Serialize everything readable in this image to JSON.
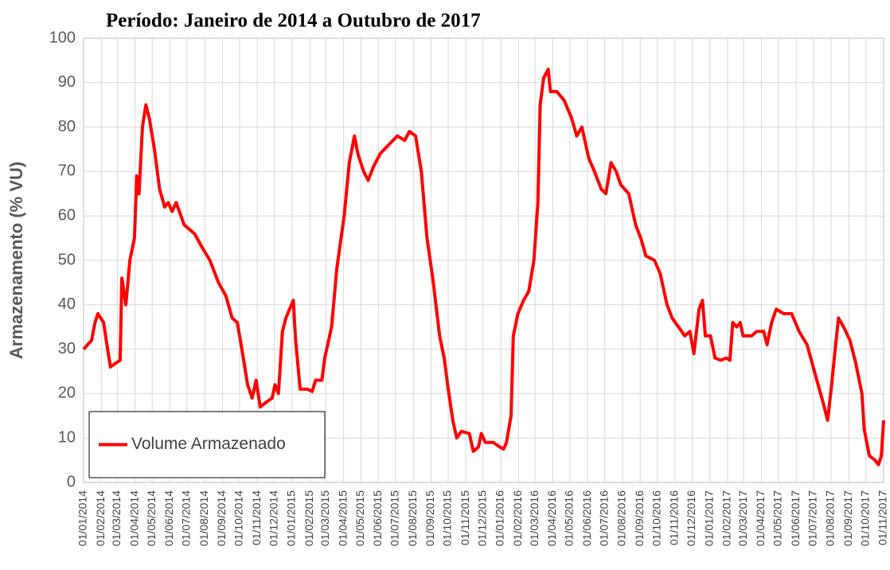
{
  "chart_data": {
    "type": "line",
    "title": "Período: Janeiro de 2014 a Outubro de 2017",
    "y_label": "Armazenamento (% VU)",
    "ylim": [
      0,
      100
    ],
    "yticks": [
      0,
      10,
      20,
      30,
      40,
      50,
      60,
      70,
      80,
      90,
      100
    ],
    "xlim": [
      "2014-01-01",
      "2017-11-01"
    ],
    "xticks": [
      {
        "value": "2014-01-01",
        "label": "01/01/2014"
      },
      {
        "value": "2014-02-01",
        "label": "01/02/2014"
      },
      {
        "value": "2014-03-01",
        "label": "01/03/2014"
      },
      {
        "value": "2014-04-01",
        "label": "01/04/2014"
      },
      {
        "value": "2014-05-01",
        "label": "01/05/2014"
      },
      {
        "value": "2014-06-01",
        "label": "01/06/2014"
      },
      {
        "value": "2014-07-01",
        "label": "01/07/2014"
      },
      {
        "value": "2014-08-01",
        "label": "01/08/2014"
      },
      {
        "value": "2014-09-01",
        "label": "01/09/2014"
      },
      {
        "value": "2014-10-01",
        "label": "01/10/2014"
      },
      {
        "value": "2014-11-01",
        "label": "01/11/2014"
      },
      {
        "value": "2014-12-01",
        "label": "01/12/2014"
      },
      {
        "value": "2015-01-01",
        "label": "01/01/2015"
      },
      {
        "value": "2015-02-01",
        "label": "01/02/2015"
      },
      {
        "value": "2015-03-01",
        "label": "01/03/2015"
      },
      {
        "value": "2015-04-01",
        "label": "01/04/2015"
      },
      {
        "value": "2015-05-01",
        "label": "01/05/2015"
      },
      {
        "value": "2015-06-01",
        "label": "01/06/2015"
      },
      {
        "value": "2015-07-01",
        "label": "01/07/2015"
      },
      {
        "value": "2015-08-01",
        "label": "01/08/2015"
      },
      {
        "value": "2015-09-01",
        "label": "01/09/2015"
      },
      {
        "value": "2015-10-01",
        "label": "01/10/2015"
      },
      {
        "value": "2015-11-01",
        "label": "01/11/2015"
      },
      {
        "value": "2015-12-01",
        "label": "01/12/2015"
      },
      {
        "value": "2016-01-01",
        "label": "01/01/2016"
      },
      {
        "value": "2016-02-01",
        "label": "01/02/2016"
      },
      {
        "value": "2016-03-01",
        "label": "01/03/2016"
      },
      {
        "value": "2016-04-01",
        "label": "01/04/2016"
      },
      {
        "value": "2016-05-01",
        "label": "01/05/2016"
      },
      {
        "value": "2016-06-01",
        "label": "01/06/2016"
      },
      {
        "value": "2016-07-01",
        "label": "01/07/2016"
      },
      {
        "value": "2016-08-01",
        "label": "01/08/2016"
      },
      {
        "value": "2016-09-01",
        "label": "01/09/2016"
      },
      {
        "value": "2016-10-01",
        "label": "01/10/2016"
      },
      {
        "value": "2016-11-01",
        "label": "01/11/2016"
      },
      {
        "value": "2016-12-01",
        "label": "01/12/2016"
      },
      {
        "value": "2017-01-01",
        "label": "01/01/2017"
      },
      {
        "value": "2017-02-01",
        "label": "01/02/2017"
      },
      {
        "value": "2017-03-01",
        "label": "01/03/2017"
      },
      {
        "value": "2017-04-01",
        "label": "01/04/2017"
      },
      {
        "value": "2017-05-01",
        "label": "01/05/2017"
      },
      {
        "value": "2017-06-01",
        "label": "01/06/2017"
      },
      {
        "value": "2017-07-01",
        "label": "01/07/2017"
      },
      {
        "value": "2017-08-01",
        "label": "01/08/2017"
      },
      {
        "value": "2017-09-01",
        "label": "01/09/2017"
      },
      {
        "value": "2017-10-01",
        "label": "01/10/2017"
      },
      {
        "value": "2017-11-01",
        "label": "01/11/2017"
      }
    ],
    "grid": true,
    "legend": "lower-left",
    "x": [
      "2014-01-01",
      "2014-01-15",
      "2014-01-21",
      "2014-01-26",
      "2014-02-05",
      "2014-02-12",
      "2014-02-17",
      "2014-02-28",
      "2014-03-06",
      "2014-03-09",
      "2014-03-16",
      "2014-03-23",
      "2014-03-31",
      "2014-04-04",
      "2014-04-08",
      "2014-04-14",
      "2014-04-20",
      "2014-04-26",
      "2014-05-05",
      "2014-05-14",
      "2014-05-23",
      "2014-05-29",
      "2014-06-05",
      "2014-06-12",
      "2014-06-26",
      "2014-07-14",
      "2014-07-27",
      "2014-08-10",
      "2014-08-25",
      "2014-09-07",
      "2014-09-18",
      "2014-09-27",
      "2014-10-05",
      "2014-10-15",
      "2014-10-23",
      "2014-10-30",
      "2014-11-06",
      "2014-11-16",
      "2014-11-27",
      "2014-12-02",
      "2014-12-08",
      "2014-12-15",
      "2014-12-21",
      "2015-01-03",
      "2015-01-07",
      "2015-01-15",
      "2015-01-27",
      "2015-02-05",
      "2015-02-11",
      "2015-02-22",
      "2015-02-27",
      "2015-03-11",
      "2015-03-20",
      "2015-04-02",
      "2015-04-11",
      "2015-04-20",
      "2015-04-26",
      "2015-05-06",
      "2015-05-14",
      "2015-05-23",
      "2015-06-04",
      "2015-06-19",
      "2015-07-04",
      "2015-07-17",
      "2015-07-25",
      "2015-08-05",
      "2015-08-15",
      "2015-08-25",
      "2015-09-05",
      "2015-09-16",
      "2015-09-24",
      "2015-09-30",
      "2015-10-09",
      "2015-10-16",
      "2015-10-24",
      "2015-11-07",
      "2015-11-14",
      "2015-11-23",
      "2015-11-28",
      "2015-12-05",
      "2015-12-19",
      "2015-12-30",
      "2016-01-06",
      "2016-01-11",
      "2016-01-19",
      "2016-01-23",
      "2016-01-31",
      "2016-02-10",
      "2016-02-19",
      "2016-02-28",
      "2016-03-06",
      "2016-03-10",
      "2016-03-16",
      "2016-03-24",
      "2016-03-28",
      "2016-04-08",
      "2016-04-21",
      "2016-05-04",
      "2016-05-13",
      "2016-05-22",
      "2016-06-03",
      "2016-06-13",
      "2016-06-25",
      "2016-07-03",
      "2016-07-12",
      "2016-07-21",
      "2016-07-29",
      "2016-08-12",
      "2016-08-24",
      "2016-09-02",
      "2016-09-11",
      "2016-09-26",
      "2016-10-06",
      "2016-10-18",
      "2016-10-27",
      "2016-11-07",
      "2016-11-18",
      "2016-11-27",
      "2016-12-04",
      "2016-12-13",
      "2016-12-19",
      "2016-12-24",
      "2017-01-02",
      "2017-01-10",
      "2017-01-20",
      "2017-01-30",
      "2017-02-05",
      "2017-02-10",
      "2017-02-17",
      "2017-02-23",
      "2017-02-28",
      "2017-03-15",
      "2017-03-24",
      "2017-04-05",
      "2017-04-11",
      "2017-04-19",
      "2017-04-27",
      "2017-05-10",
      "2017-05-24",
      "2017-06-06",
      "2017-06-20",
      "2017-07-05",
      "2017-07-18",
      "2017-07-26",
      "2017-08-02",
      "2017-08-09",
      "2017-08-14",
      "2017-08-23",
      "2017-09-03",
      "2017-09-13",
      "2017-09-24",
      "2017-09-28",
      "2017-10-01",
      "2017-10-07",
      "2017-10-17",
      "2017-10-23",
      "2017-10-28",
      "2017-11-01"
    ],
    "series": [
      {
        "name": "Volume Armazenado",
        "color": "#ff0000",
        "values": [
          30,
          32,
          36,
          38,
          36,
          30,
          26,
          27,
          27.5,
          46,
          40,
          50,
          55,
          69,
          65,
          80,
          85,
          82,
          75,
          66,
          62,
          63,
          61,
          63,
          58,
          56,
          53,
          50,
          45,
          42,
          37,
          36,
          30,
          22,
          19,
          23,
          17,
          18,
          19,
          22,
          20,
          34,
          37,
          41,
          32,
          21,
          21,
          20.5,
          23,
          23,
          28,
          35,
          48,
          60,
          72,
          78,
          74,
          70,
          68,
          71,
          74,
          76,
          78,
          77,
          79,
          78,
          70,
          55,
          45,
          33,
          28,
          22,
          14,
          10,
          11.5,
          11,
          7,
          8,
          11,
          9,
          9,
          8,
          7.5,
          9,
          15,
          33,
          38,
          41,
          43,
          50,
          63,
          85,
          91,
          93,
          88,
          88,
          86,
          82,
          78,
          80,
          73,
          70,
          66,
          65,
          72,
          70,
          67,
          65,
          58,
          55,
          51,
          50,
          47,
          40,
          37,
          35,
          33,
          34,
          29,
          39,
          41,
          33,
          33,
          28,
          27.5,
          28,
          27.5,
          36,
          35,
          36,
          33,
          33,
          34,
          34,
          31,
          36,
          39,
          38,
          38,
          34,
          31,
          24,
          18,
          14,
          22,
          31,
          37,
          35,
          32,
          27,
          20,
          12,
          10,
          6,
          5,
          4,
          6,
          14
        ]
      }
    ]
  }
}
